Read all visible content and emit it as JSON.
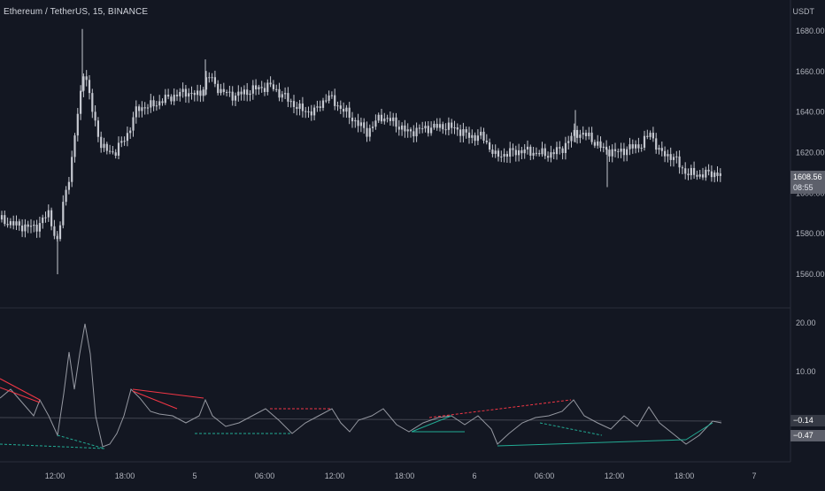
{
  "header": {
    "symbol_title": "Ethereum / TetherUS, 15, BINANCE",
    "currency": "USDT"
  },
  "price_axis": {
    "ticks": [
      "1680.00",
      "1660.00",
      "1640.00",
      "1620.00",
      "1600.00",
      "1580.00",
      "1560.00"
    ],
    "tick_values": [
      1680,
      1660,
      1640,
      1620,
      1600,
      1580,
      1560
    ],
    "current_price": "1608.56",
    "countdown": "08:55"
  },
  "oscillator_axis": {
    "ticks": [
      "20.00",
      "10.00"
    ],
    "tick_values": [
      20,
      10
    ],
    "value_1": "−0.14",
    "value_2": "−0.47"
  },
  "time_axis": {
    "labels": [
      "12:00",
      "18:00",
      "5",
      "06:00",
      "12:00",
      "18:00",
      "6",
      "06:00",
      "12:00",
      "18:00",
      "7"
    ]
  },
  "colors": {
    "background": "#131722",
    "candle": "#c5c8d0",
    "divergence_bear": "#f23645",
    "divergence_bull": "#22ab94",
    "oscillator_line": "#9598a1",
    "tag_gray": "#5d606b",
    "tag_dark": "#363a45"
  }
}
